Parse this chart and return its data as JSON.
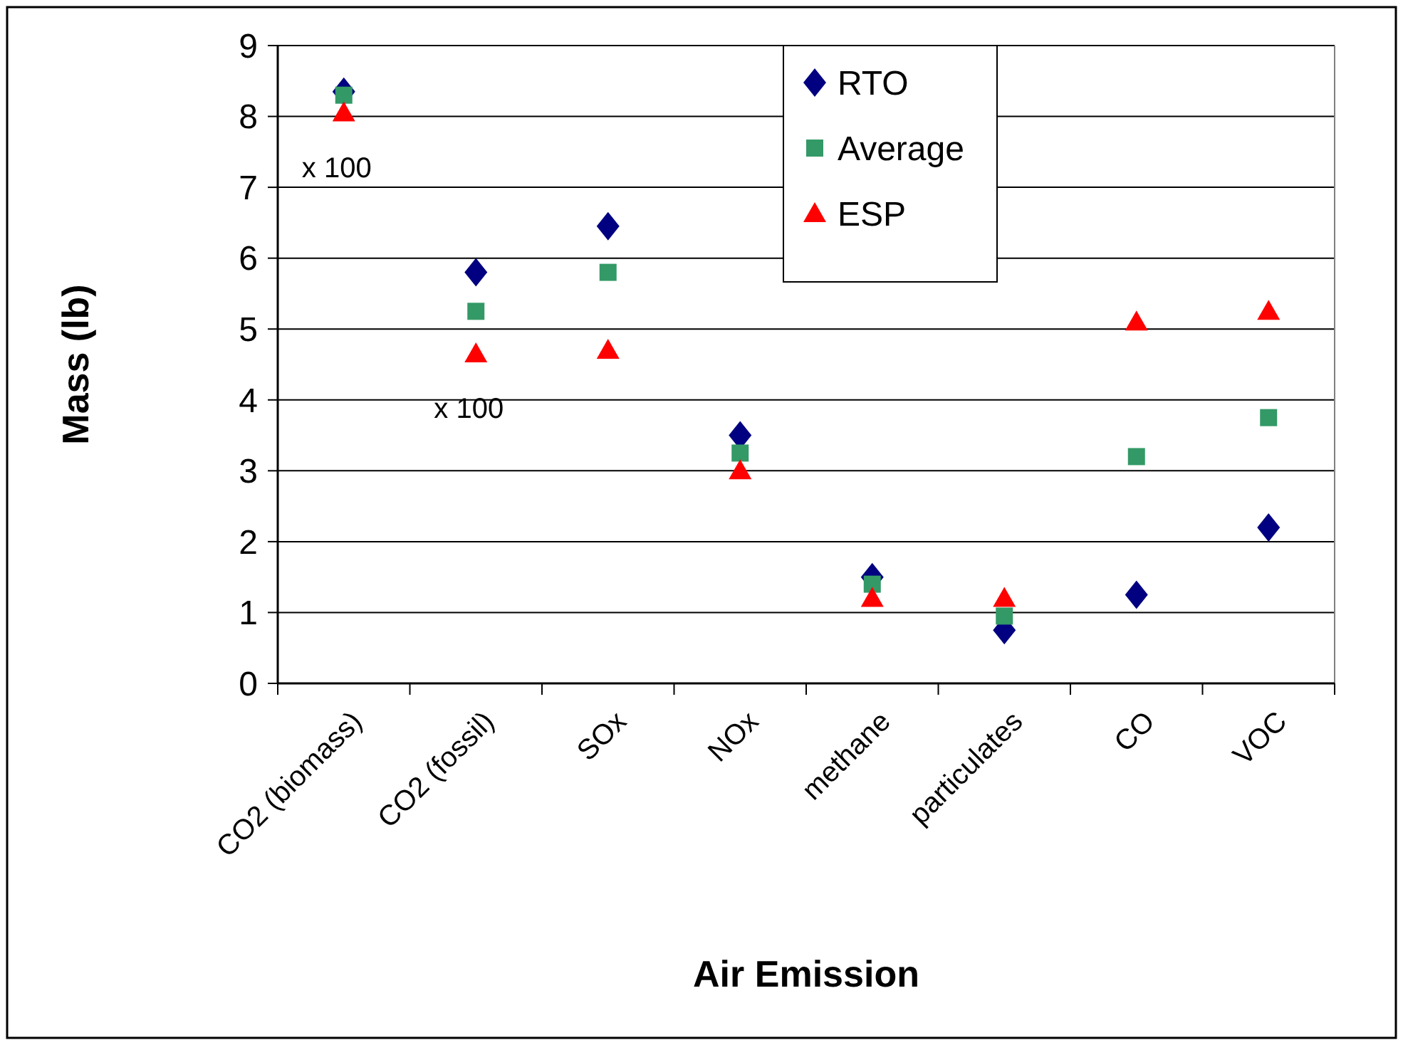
{
  "chart_data": {
    "type": "scatter",
    "xlabel": "Air Emission",
    "ylabel": "Mass (lb)",
    "categories": [
      "CO2 (biomass)",
      "CO2 (fossil)",
      "SOx",
      "NOx",
      "methane",
      "particulates",
      "CO",
      "VOC"
    ],
    "series": [
      {
        "name": "RTO",
        "color": "#000080",
        "marker": "diamond",
        "values": [
          8.35,
          5.8,
          6.45,
          3.5,
          1.5,
          0.75,
          1.25,
          2.2
        ]
      },
      {
        "name": "Average",
        "color": "#339966",
        "marker": "square",
        "values": [
          8.3,
          5.25,
          5.8,
          3.25,
          1.4,
          0.95,
          3.2,
          3.75
        ]
      },
      {
        "name": "ESP",
        "color": "#ff0000",
        "marker": "triangle",
        "values": [
          8.05,
          4.65,
          4.7,
          3.0,
          1.2,
          1.2,
          5.1,
          5.25
        ]
      }
    ],
    "ylim": [
      0,
      9
    ],
    "yticks": [
      0,
      1,
      2,
      3,
      4,
      5,
      6,
      7,
      8,
      9
    ],
    "grid": "y",
    "legend": "top",
    "annotations": [
      "x 100",
      "x 100"
    ]
  }
}
